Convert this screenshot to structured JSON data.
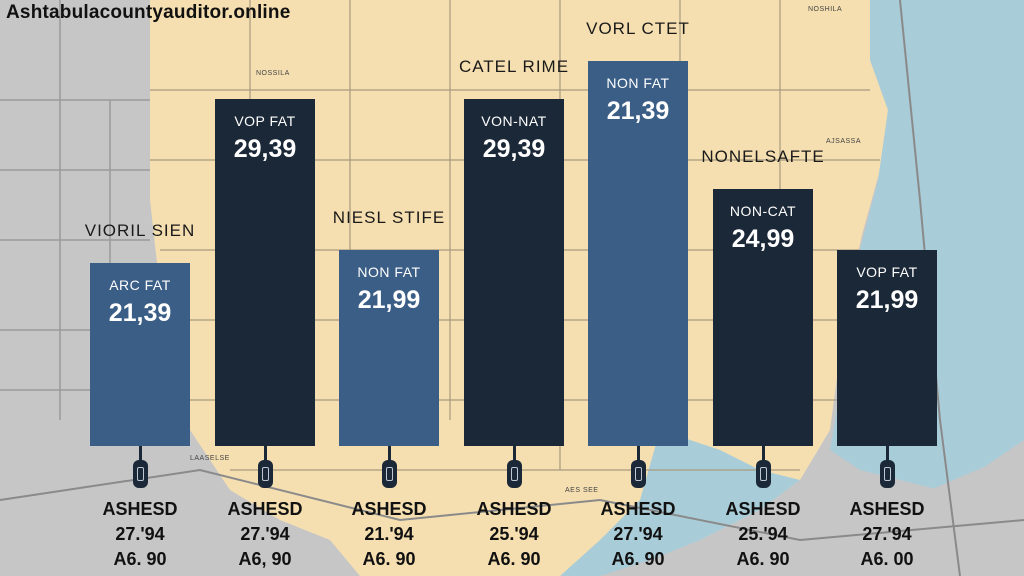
{
  "site_label": "Ashtabulacountyauditor.online",
  "map_labels": [
    "NOSHILA",
    "NOSSILA",
    "AJSASSA",
    "LAASELSE",
    "AES SEE"
  ],
  "colors": {
    "map_land": "#f5dfb0",
    "map_water": "#a9ccd9",
    "map_gray": "#c6c6c6",
    "road": "#8a8a8a",
    "bar_dark": "#1b2838",
    "bar_blue": "#3b5e87"
  },
  "chart_data": {
    "type": "bar",
    "categories": [
      "VIORIL SIEN",
      "",
      "NIESL STIFE",
      "CATEL RIME",
      "VORL CTET",
      "NONELSAFTE",
      ""
    ],
    "series": [
      {
        "values": [
          21.39,
          29.39,
          21.99,
          29.39,
          21.39,
          24.99,
          21.99
        ]
      }
    ],
    "bar_labels": [
      "ARC FAT",
      "VOP FAT",
      "NON FAT",
      "VON-NAT",
      "NON FAT",
      "NON-CAT",
      "VOP FAT"
    ],
    "value_labels": [
      "21,39",
      "29,39",
      "21,99",
      "29,39",
      "21,39",
      "24,99",
      "21,99"
    ],
    "bar_colors": [
      "blue",
      "dark",
      "blue",
      "dark",
      "blue",
      "dark",
      "dark"
    ],
    "footer": [
      {
        "l1": "ASHESD",
        "l2": "27.'94",
        "l3": "A6. 90"
      },
      {
        "l1": "ASHESD",
        "l2": "27.'94",
        "l3": "A6, 90"
      },
      {
        "l1": "ASHESD",
        "l2": "21.'94",
        "l3": "A6. 90"
      },
      {
        "l1": "ASHESD",
        "l2": "25.'94",
        "l3": "A6. 90"
      },
      {
        "l1": "ASHESD",
        "l2": "27.'94",
        "l3": "A6. 90"
      },
      {
        "l1": "ASHESD",
        "l2": "25.'94",
        "l3": "A6. 90"
      },
      {
        "l1": "ASHESD",
        "l2": "27.'94",
        "l3": "A6. 00"
      }
    ]
  }
}
